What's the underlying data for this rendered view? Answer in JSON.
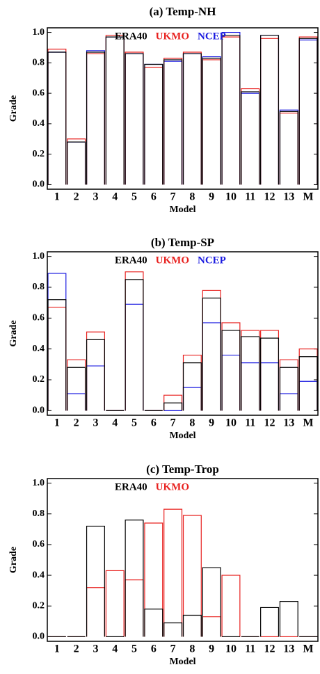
{
  "chart_data": [
    {
      "type": "bar",
      "title": "(a) Temp-NH",
      "x_label": "Model",
      "y_label": "Grade",
      "categories": [
        "1",
        "2",
        "3",
        "4",
        "5",
        "6",
        "7",
        "8",
        "9",
        "10",
        "11",
        "12",
        "13",
        "M"
      ],
      "series": [
        {
          "name": "ERA40",
          "color": "#000000",
          "values": [
            0.87,
            0.28,
            0.87,
            0.97,
            0.86,
            0.79,
            0.82,
            0.86,
            0.83,
            0.98,
            0.61,
            0.98,
            0.48,
            0.96
          ]
        },
        {
          "name": "UKMO",
          "color": "#e8201e",
          "values": [
            0.89,
            0.3,
            0.86,
            0.98,
            0.87,
            0.77,
            0.83,
            0.87,
            0.82,
            0.97,
            0.63,
            0.96,
            0.47,
            0.97
          ]
        },
        {
          "name": "NCEP",
          "color": "#1a1ae0",
          "values": [
            0.87,
            0.28,
            0.88,
            0.97,
            0.86,
            0.79,
            0.81,
            0.86,
            0.84,
            1.0,
            0.6,
            0.98,
            0.49,
            0.95
          ]
        }
      ],
      "ylim": [
        -0.03,
        1.03
      ],
      "yticks": [
        {
          "value": 0,
          "label": "0.0"
        },
        0.2,
        0.4,
        0.6,
        0.8,
        {
          "value": 1,
          "label": "1.0"
        }
      ]
    },
    {
      "type": "bar",
      "title": "(b) Temp-SP",
      "x_label": "Model",
      "y_label": "Grade",
      "categories": [
        "1",
        "2",
        "3",
        "4",
        "5",
        "6",
        "7",
        "8",
        "9",
        "10",
        "11",
        "12",
        "13",
        "M"
      ],
      "series": [
        {
          "name": "ERA40",
          "color": "#000000",
          "values": [
            0.72,
            0.28,
            0.46,
            0,
            0.85,
            0,
            0.05,
            0.31,
            0.73,
            0.52,
            0.48,
            0.47,
            0.28,
            0.35
          ]
        },
        {
          "name": "UKMO",
          "color": "#e8201e",
          "values": [
            0.67,
            0.33,
            0.51,
            0,
            0.9,
            0,
            0.1,
            0.36,
            0.78,
            0.57,
            0.52,
            0.52,
            0.33,
            0.4
          ]
        },
        {
          "name": "NCEP",
          "color": "#1a1ae0",
          "values": [
            0.89,
            0.11,
            0.29,
            0,
            0.69,
            0,
            0,
            0.15,
            0.57,
            0.36,
            0.31,
            0.31,
            0.11,
            0.19
          ]
        }
      ],
      "ylim": [
        -0.03,
        1.03
      ],
      "yticks": [
        {
          "value": 0,
          "label": "0.0"
        },
        0.2,
        0.4,
        0.6,
        0.8,
        {
          "value": 1,
          "label": "1.0"
        }
      ]
    },
    {
      "type": "bar",
      "title": "(c) Temp-Trop",
      "x_label": "Model",
      "y_label": "Grade",
      "categories": [
        "1",
        "2",
        "3",
        "4",
        "5",
        "6",
        "7",
        "8",
        "9",
        "10",
        "11",
        "12",
        "13",
        "M"
      ],
      "series": [
        {
          "name": "ERA40",
          "color": "#000000",
          "values": [
            0,
            0,
            0.72,
            0,
            0.76,
            0.18,
            0.09,
            0.14,
            0.45,
            0,
            0,
            0.19,
            0.23,
            0
          ]
        },
        {
          "name": "UKMO",
          "color": "#e8201e",
          "values": [
            0,
            0,
            0.32,
            0.43,
            0.37,
            0.74,
            0.83,
            0.79,
            0.13,
            0.4,
            0,
            0,
            0,
            0
          ]
        }
      ],
      "ylim": [
        -0.03,
        1.03
      ],
      "yticks": [
        {
          "value": 0,
          "label": "0.0"
        },
        0.2,
        0.4,
        0.6,
        0.8,
        {
          "value": 1,
          "label": "1.0"
        }
      ]
    }
  ]
}
